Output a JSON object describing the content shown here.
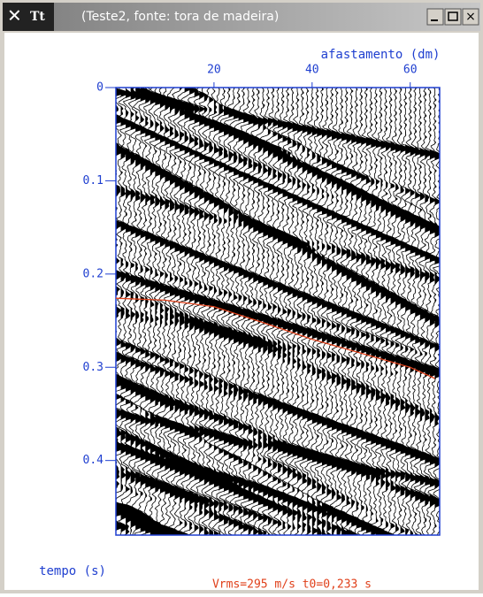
{
  "window": {
    "title": "(Teste2, fonte: tora de madeira)",
    "icon_label": "Tt"
  },
  "chart_data": {
    "type": "wiggle",
    "xlabel": "afastamento (dm)",
    "ylabel": "tempo (s)",
    "annotation": "Vrms=295 m/s  t0=0,233 s",
    "xlim": [
      0,
      66
    ],
    "ylim": [
      0,
      0.48
    ],
    "xticks": [
      20,
      40,
      60
    ],
    "yticks": [
      0,
      0.1,
      0.2,
      0.3,
      0.4
    ],
    "axis_color": "#1f3fd0",
    "series": [
      {
        "color": "#e0401a",
        "x": [
          0,
          10,
          20,
          30,
          40,
          50,
          60,
          65
        ],
        "values": [
          0.226,
          0.228,
          0.235,
          0.252,
          0.27,
          0.285,
          0.3,
          0.312
        ]
      }
    ]
  }
}
